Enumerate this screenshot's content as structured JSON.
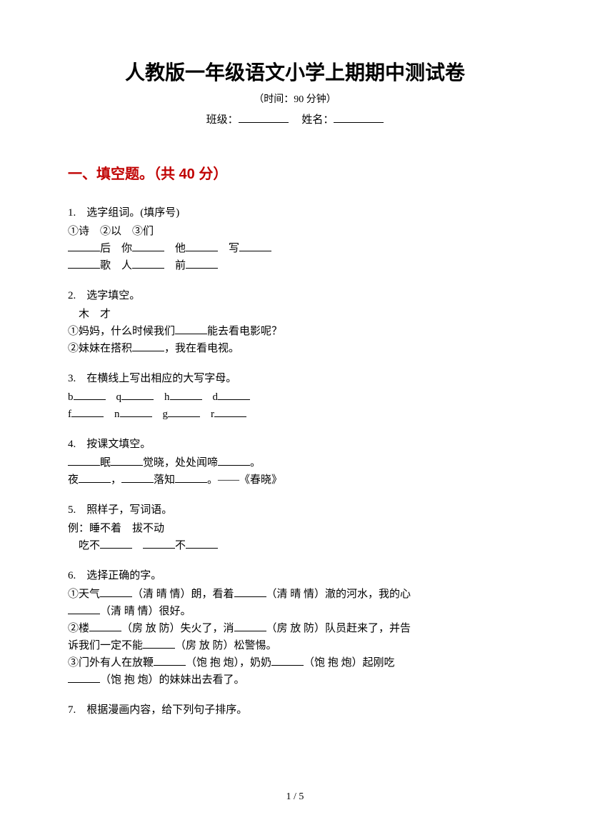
{
  "header": {
    "title": "人教版一年级语文小学上期期中测试卷",
    "time_note": "（时间：90 分钟）",
    "class_label": "班级：",
    "name_label": "姓名："
  },
  "section1": {
    "title": "一、填空题。（共 40 分）"
  },
  "q1": {
    "num": "1.　选字组词。(填序号)",
    "options": "①诗　②以　③们",
    "line1a": "后　你",
    "line1b": "　他",
    "line1c": "　写",
    "line2a": "歌　人",
    "line2b": "　前"
  },
  "q2": {
    "num": "2.　选字填空。",
    "chars": "　木　才",
    "line1a": "①妈妈，什么时候我们",
    "line1b": "能去看电影呢？",
    "line2a": "②妹妹在搭积",
    "line2b": "，我在看电视。"
  },
  "q3": {
    "num": "3.　在横线上写出相应的大写字母。",
    "line1": "b",
    "l1b": "　q",
    "l1c": "　h",
    "l1d": "　d",
    "line2": "f",
    "l2b": "　n",
    "l2c": "　g",
    "l2d": "　r"
  },
  "q4": {
    "num": "4.　按课文填空。",
    "line1a": "眠",
    "line1b": "觉晓，处处闻啼",
    "line1c": "。",
    "line2a": "夜",
    "line2b": "，",
    "line2c": "落知",
    "line2d": "。——《春晓》"
  },
  "q5": {
    "num": "5.　照样子，写词语。",
    "example": "例：睡不着　拔不动",
    "line1a": "　吃不",
    "line1b": "不"
  },
  "q6": {
    "num": "6.　选择正确的字。",
    "line1a": "①天气",
    "line1b": "（清 晴 情）朗，看着",
    "line1c": "（清 晴 情）澈的河水，我的心",
    "line2a": "（清 晴 情）很好。",
    "line3a": "②楼",
    "line3b": "（房 放 防）失火了，消",
    "line3c": "（房 放 防）队员赶来了，并告",
    "line4a": "诉我们一定不能",
    "line4b": "（房 放 防）松警惕。",
    "line5a": "③门外有人在放鞭",
    "line5b": "（饱 抱 炮），奶奶",
    "line5c": "（饱 抱 炮）起刚吃",
    "line6a": "（饱 抱 炮）的妹妹出去看了。"
  },
  "q7": {
    "num": "7.　根据漫画内容，给下列句子排序。"
  },
  "footer": {
    "page": "1 / 5"
  }
}
